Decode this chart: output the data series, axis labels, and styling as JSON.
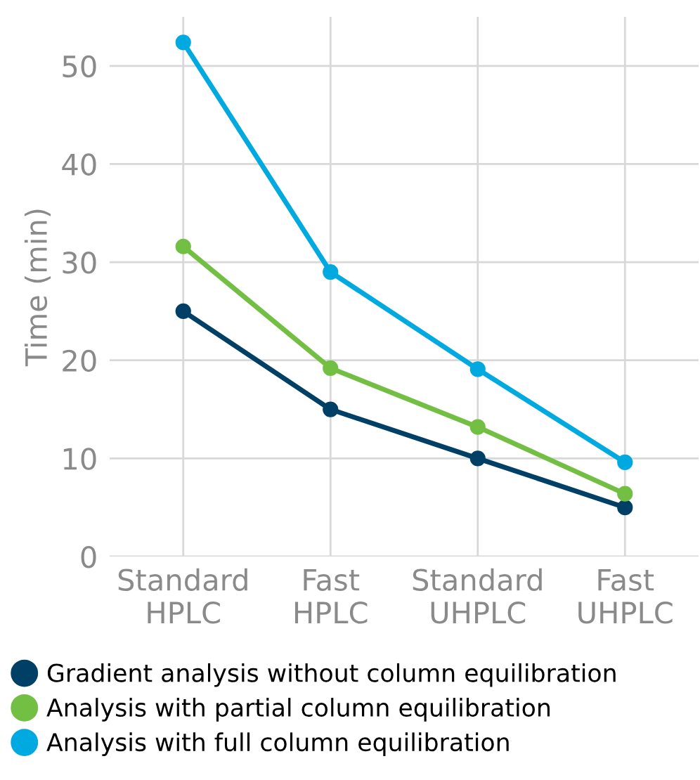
{
  "chart_data": {
    "type": "line",
    "ylabel": "Time (min)",
    "categories": [
      "Standard\nHPLC",
      "Fast\nHPLC",
      "Standard\nUHPLC",
      "Fast\nUHPLC"
    ],
    "series": [
      {
        "name": "Gradient analysis without column equilibration",
        "color": "#003f66",
        "values": [
          25.0,
          15.0,
          10.0,
          5.0
        ]
      },
      {
        "name": "Analysis with partial column equilibration",
        "color": "#72bf44",
        "values": [
          31.6,
          19.2,
          13.2,
          6.4
        ]
      },
      {
        "name": "Analysis with full column equilibration",
        "color": "#00aae0",
        "values": [
          52.4,
          29.0,
          19.1,
          9.6
        ]
      }
    ],
    "ylim": [
      0,
      55
    ],
    "yticks": [
      0,
      10,
      20,
      30,
      40,
      50
    ],
    "grid": true,
    "legend": "bottom",
    "marker": "circle",
    "line_style": "solid"
  }
}
